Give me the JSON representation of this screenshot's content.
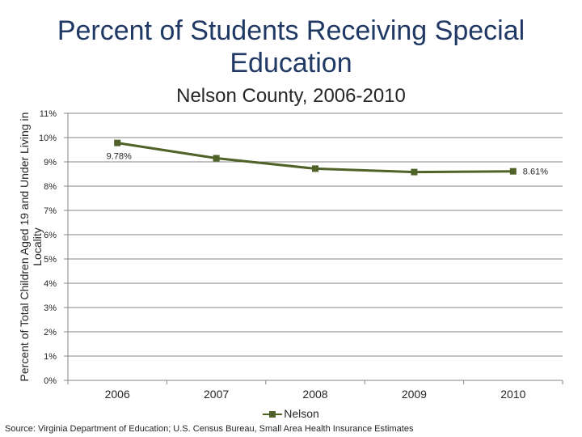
{
  "chart_data": {
    "type": "line",
    "title": "Percent of Students Receiving Special Education",
    "subtitle": "Nelson County, 2006-2010",
    "ylabel": "Percent of Total Children Aged 19 and Under Living in Locality",
    "xlabel": "",
    "categories": [
      "2006",
      "2007",
      "2008",
      "2009",
      "2010"
    ],
    "series": [
      {
        "name": "Nelson",
        "values": [
          9.78,
          9.15,
          8.72,
          8.58,
          8.61
        ],
        "color": "#4f6228"
      }
    ],
    "data_labels": [
      {
        "index": 0,
        "text": "9.78%"
      },
      {
        "index": 4,
        "text": "8.61%"
      }
    ],
    "ylim": [
      0,
      11
    ],
    "yticks": [
      "0%",
      "1%",
      "2%",
      "3%",
      "4%",
      "5%",
      "6%",
      "7%",
      "8%",
      "9%",
      "10%",
      "11%"
    ],
    "grid": true,
    "legend": "bottom"
  },
  "source": "Source: Virginia Department of Education; U.S. Census Bureau, Small Area Health Insurance Estimates"
}
